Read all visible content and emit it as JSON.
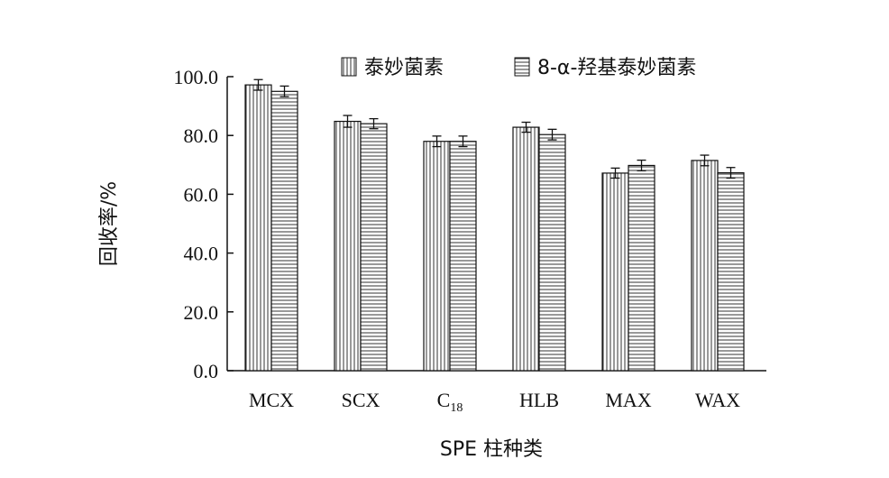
{
  "chart_data": {
    "type": "bar",
    "categories": [
      "MCX",
      "SCX",
      "C18",
      "HLB",
      "MAX",
      "WAX"
    ],
    "series": [
      {
        "name": "泰妙菌素",
        "values": [
          97.2,
          84.8,
          78.0,
          82.8,
          67.2,
          71.5
        ],
        "errors": [
          1.8,
          2.0,
          1.8,
          1.7,
          1.7,
          1.8
        ]
      },
      {
        "name": "8-α-羟基泰妙菌素",
        "values": [
          95.0,
          84.0,
          78.0,
          80.3,
          69.8,
          67.3
        ],
        "errors": [
          1.8,
          1.7,
          1.8,
          1.8,
          1.8,
          1.8
        ]
      }
    ],
    "ylim": [
      0,
      100
    ],
    "yticks": [
      "0.0",
      "20.0",
      "40.0",
      "60.0",
      "80.0",
      "100.0"
    ],
    "xlabel": "SPE 柱种类",
    "ylabel": "回收率/%",
    "legend_position": "top-right",
    "series_patterns": [
      "vertical-hatch",
      "horizontal-hatch"
    ]
  }
}
